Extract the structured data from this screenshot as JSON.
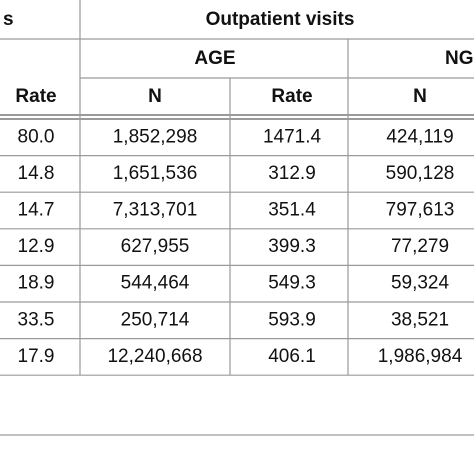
{
  "header": {
    "group_left": "s",
    "group": "Outpatient visits",
    "subgroup": "AGE",
    "subgroup_right": "NG",
    "columns": [
      "Rate",
      "N",
      "Rate",
      "N"
    ]
  },
  "table": {
    "rows": [
      [
        "80.0",
        "1,852,298",
        "1471.4",
        "424,119"
      ],
      [
        "14.8",
        "1,651,536",
        "312.9",
        "590,128"
      ],
      [
        "14.7",
        "7,313,701",
        "351.4",
        "797,613"
      ],
      [
        "12.9",
        "627,955",
        "399.3",
        "77,279"
      ],
      [
        "18.9",
        "544,464",
        "549.3",
        "59,324"
      ],
      [
        "33.5",
        "250,714",
        "593.9",
        "38,521"
      ],
      [
        "17.9",
        "12,240,668",
        "406.1",
        "1,986,984"
      ]
    ]
  }
}
